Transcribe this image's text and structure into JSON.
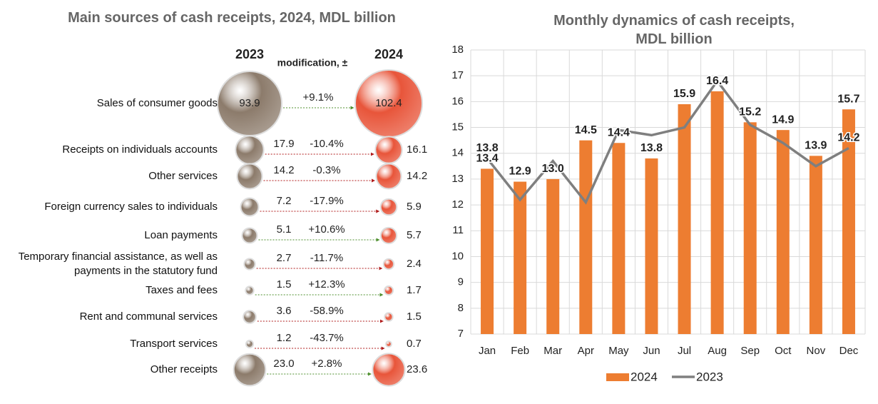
{
  "chart_data": [
    {
      "type": "bubble-compare",
      "title": "Main sources of cash receipts, 2024,  MDL billion",
      "categories": [
        "Sales of consumer goods",
        "Receipts on individuals accounts",
        "Other services",
        "Foreign currency sales to individuals",
        "Loan payments",
        "Temporary financial assistance, as well as payments in the statutory fund",
        "Taxes and fees",
        "Rent and communal services",
        "Transport services",
        "Other receipts"
      ],
      "series": [
        {
          "name": "2023",
          "color": "#8c7b6b",
          "values": [
            93.9,
            17.9,
            14.2,
            7.2,
            5.1,
            2.7,
            1.5,
            3.6,
            1.2,
            23.0
          ],
          "value_labels": [
            "93.9",
            "17.9",
            "14.2",
            "7.2",
            "5.1",
            "2.7",
            "1.5",
            "3.6",
            "1.2",
            "23.0"
          ]
        },
        {
          "name": "2024",
          "color": "#e8553a",
          "values": [
            102.4,
            16.1,
            14.2,
            5.9,
            5.7,
            2.4,
            1.7,
            1.5,
            0.7,
            23.6
          ],
          "value_labels": [
            "102.4",
            "16.1",
            "14.2",
            "5.9",
            "5.7",
            "2.4",
            "1.7",
            "1.5",
            "0.7",
            "23.6"
          ]
        },
        {
          "name": "modification, ±",
          "values": [
            9.1,
            -10.4,
            -0.3,
            -17.9,
            10.6,
            -11.7,
            12.3,
            -58.9,
            -43.7,
            2.8
          ],
          "value_labels": [
            "+9.1%",
            "-10.4%",
            "-0.3%",
            "-17.9%",
            "+10.6%",
            "-11.7%",
            "+12.3%",
            "-58.9%",
            "-43.7%",
            "+2.8%"
          ],
          "positive_color": "#4e8f2e",
          "negative_color": "#b01c1c"
        }
      ]
    },
    {
      "type": "bar-line",
      "title": "Monthly dynamics of cash receipts, MDL billion",
      "categories": [
        "Jan",
        "Feb",
        "Mar",
        "Apr",
        "May",
        "Jun",
        "Jul",
        "Aug",
        "Sep",
        "Oct",
        "Nov",
        "Dec"
      ],
      "series": [
        {
          "name": "2024",
          "type": "bar",
          "color": "#ed7d31",
          "values": [
            13.4,
            12.9,
            13.0,
            14.5,
            14.4,
            13.8,
            15.9,
            16.4,
            15.2,
            14.9,
            13.9,
            15.7
          ],
          "value_labels": [
            "13.4",
            "12.9",
            "13.0",
            "14.5",
            "14.4",
            "13.8",
            "15.9",
            "16.4",
            "15.2",
            "14.9",
            "13.9",
            "15.7"
          ]
        },
        {
          "name": "2023",
          "type": "line",
          "color": "#7f7f7f",
          "values": [
            13.8,
            12.2,
            13.7,
            12.1,
            14.9,
            14.7,
            15.0,
            16.8,
            15.1,
            14.4,
            13.5,
            14.2
          ],
          "value_labels": [
            "13.8",
            null,
            null,
            null,
            null,
            null,
            null,
            null,
            null,
            null,
            null,
            "14.2"
          ]
        }
      ],
      "ylim": [
        7,
        18
      ],
      "yticks": [
        7,
        8,
        9,
        10,
        11,
        12,
        13,
        14,
        15,
        16,
        17,
        18
      ],
      "grid": true,
      "legend": "bottom"
    }
  ]
}
